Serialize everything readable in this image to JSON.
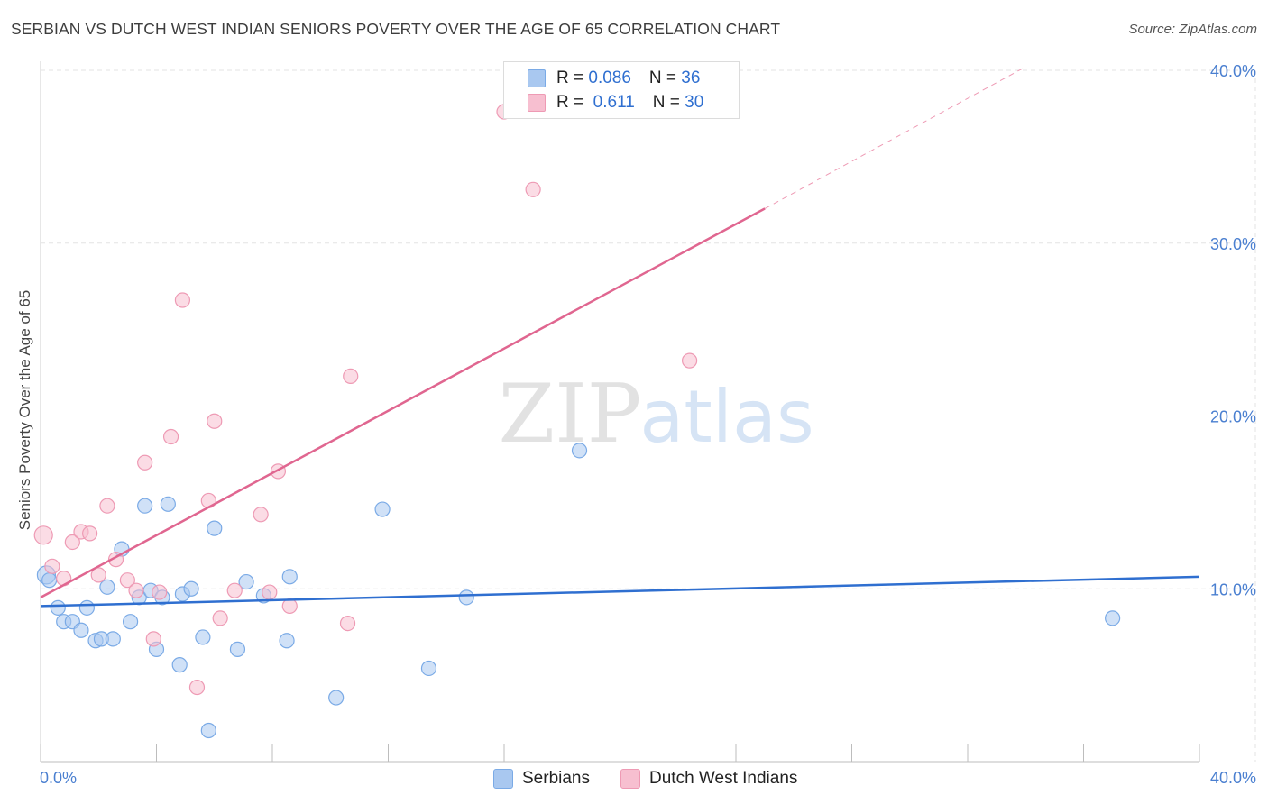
{
  "title": "SERBIAN VS DUTCH WEST INDIAN SENIORS POVERTY OVER THE AGE OF 65 CORRELATION CHART",
  "source": "Source: ZipAtlas.com",
  "watermark": {
    "zip": "ZIP",
    "atlas": "atlas"
  },
  "colors": {
    "serbians_fill": "#a9c8f0",
    "serbians_stroke": "#7aaae6",
    "serbians_line": "#2f6fd0",
    "dutch_fill": "#f7bfd0",
    "dutch_stroke": "#ee9ab4",
    "dutch_line": "#e06690",
    "grid": "#e3e3e3",
    "tick_text": "#4a7fd0"
  },
  "legend": {
    "rows": [
      {
        "r_label": "R = ",
        "r_value": "0.086",
        "n_label": "N = ",
        "n_value": "36"
      },
      {
        "r_label": "R = ",
        "r_value": " 0.611",
        "n_label": "N = ",
        "n_value": "30"
      }
    ]
  },
  "bottom_legend": [
    "Serbians",
    "Dutch West Indians"
  ],
  "chart_data": {
    "type": "scatter",
    "title": "SERBIAN VS DUTCH WEST INDIAN SENIORS POVERTY OVER THE AGE OF 65 CORRELATION CHART",
    "xlabel": "",
    "ylabel": "Seniors Poverty Over the Age of 65",
    "xlim": [
      0,
      40
    ],
    "ylim": [
      0,
      40
    ],
    "y_ticks": [
      10,
      20,
      30,
      40
    ],
    "y_tick_labels": [
      "10.0%",
      "20.0%",
      "30.0%",
      "40.0%"
    ],
    "x_tick_labels": [
      "0.0%",
      "40.0%"
    ],
    "grid": true,
    "series": [
      {
        "name": "Serbians",
        "r": 0.086,
        "n": 36,
        "trend": {
          "x": [
            0,
            40
          ],
          "y": [
            9.0,
            10.7
          ]
        },
        "points": [
          [
            0.2,
            10.8
          ],
          [
            0.3,
            10.5
          ],
          [
            0.6,
            8.9
          ],
          [
            0.8,
            8.1
          ],
          [
            1.1,
            8.1
          ],
          [
            1.4,
            7.6
          ],
          [
            1.6,
            8.9
          ],
          [
            1.9,
            7.0
          ],
          [
            2.1,
            7.1
          ],
          [
            2.3,
            10.1
          ],
          [
            2.5,
            7.1
          ],
          [
            2.8,
            12.3
          ],
          [
            3.1,
            8.1
          ],
          [
            3.4,
            9.5
          ],
          [
            3.6,
            14.8
          ],
          [
            3.8,
            9.9
          ],
          [
            4.0,
            6.5
          ],
          [
            4.2,
            9.5
          ],
          [
            4.4,
            14.9
          ],
          [
            4.8,
            5.6
          ],
          [
            4.9,
            9.7
          ],
          [
            5.2,
            10.0
          ],
          [
            5.6,
            7.2
          ],
          [
            5.8,
            1.8
          ],
          [
            6.0,
            13.5
          ],
          [
            6.8,
            6.5
          ],
          [
            7.1,
            10.4
          ],
          [
            7.7,
            9.6
          ],
          [
            8.5,
            7.0
          ],
          [
            8.6,
            10.7
          ],
          [
            10.2,
            3.7
          ],
          [
            11.8,
            14.6
          ],
          [
            13.4,
            5.4
          ],
          [
            14.7,
            9.5
          ],
          [
            18.6,
            18.0
          ],
          [
            37.0,
            8.3
          ]
        ]
      },
      {
        "name": "Dutch West Indians",
        "r": 0.611,
        "n": 30,
        "trend": {
          "x": [
            0,
            25
          ],
          "y": [
            9.5,
            32.0
          ]
        },
        "trend_dashed": {
          "x": [
            25,
            34
          ],
          "y": [
            32.0,
            40.2
          ]
        },
        "points": [
          [
            0.1,
            13.1
          ],
          [
            0.4,
            11.3
          ],
          [
            0.8,
            10.6
          ],
          [
            1.1,
            12.7
          ],
          [
            1.4,
            13.3
          ],
          [
            1.7,
            13.2
          ],
          [
            2.0,
            10.8
          ],
          [
            2.3,
            14.8
          ],
          [
            2.6,
            11.7
          ],
          [
            3.0,
            10.5
          ],
          [
            3.3,
            9.9
          ],
          [
            3.6,
            17.3
          ],
          [
            3.9,
            7.1
          ],
          [
            4.1,
            9.8
          ],
          [
            4.5,
            18.8
          ],
          [
            4.9,
            26.7
          ],
          [
            5.4,
            4.3
          ],
          [
            5.8,
            15.1
          ],
          [
            6.0,
            19.7
          ],
          [
            6.2,
            8.3
          ],
          [
            6.7,
            9.9
          ],
          [
            7.6,
            14.3
          ],
          [
            7.9,
            9.8
          ],
          [
            8.2,
            16.8
          ],
          [
            8.6,
            9.0
          ],
          [
            10.6,
            8.0
          ],
          [
            10.7,
            22.3
          ],
          [
            16.0,
            37.6
          ],
          [
            17.0,
            33.1
          ],
          [
            22.4,
            23.2
          ]
        ]
      }
    ]
  }
}
